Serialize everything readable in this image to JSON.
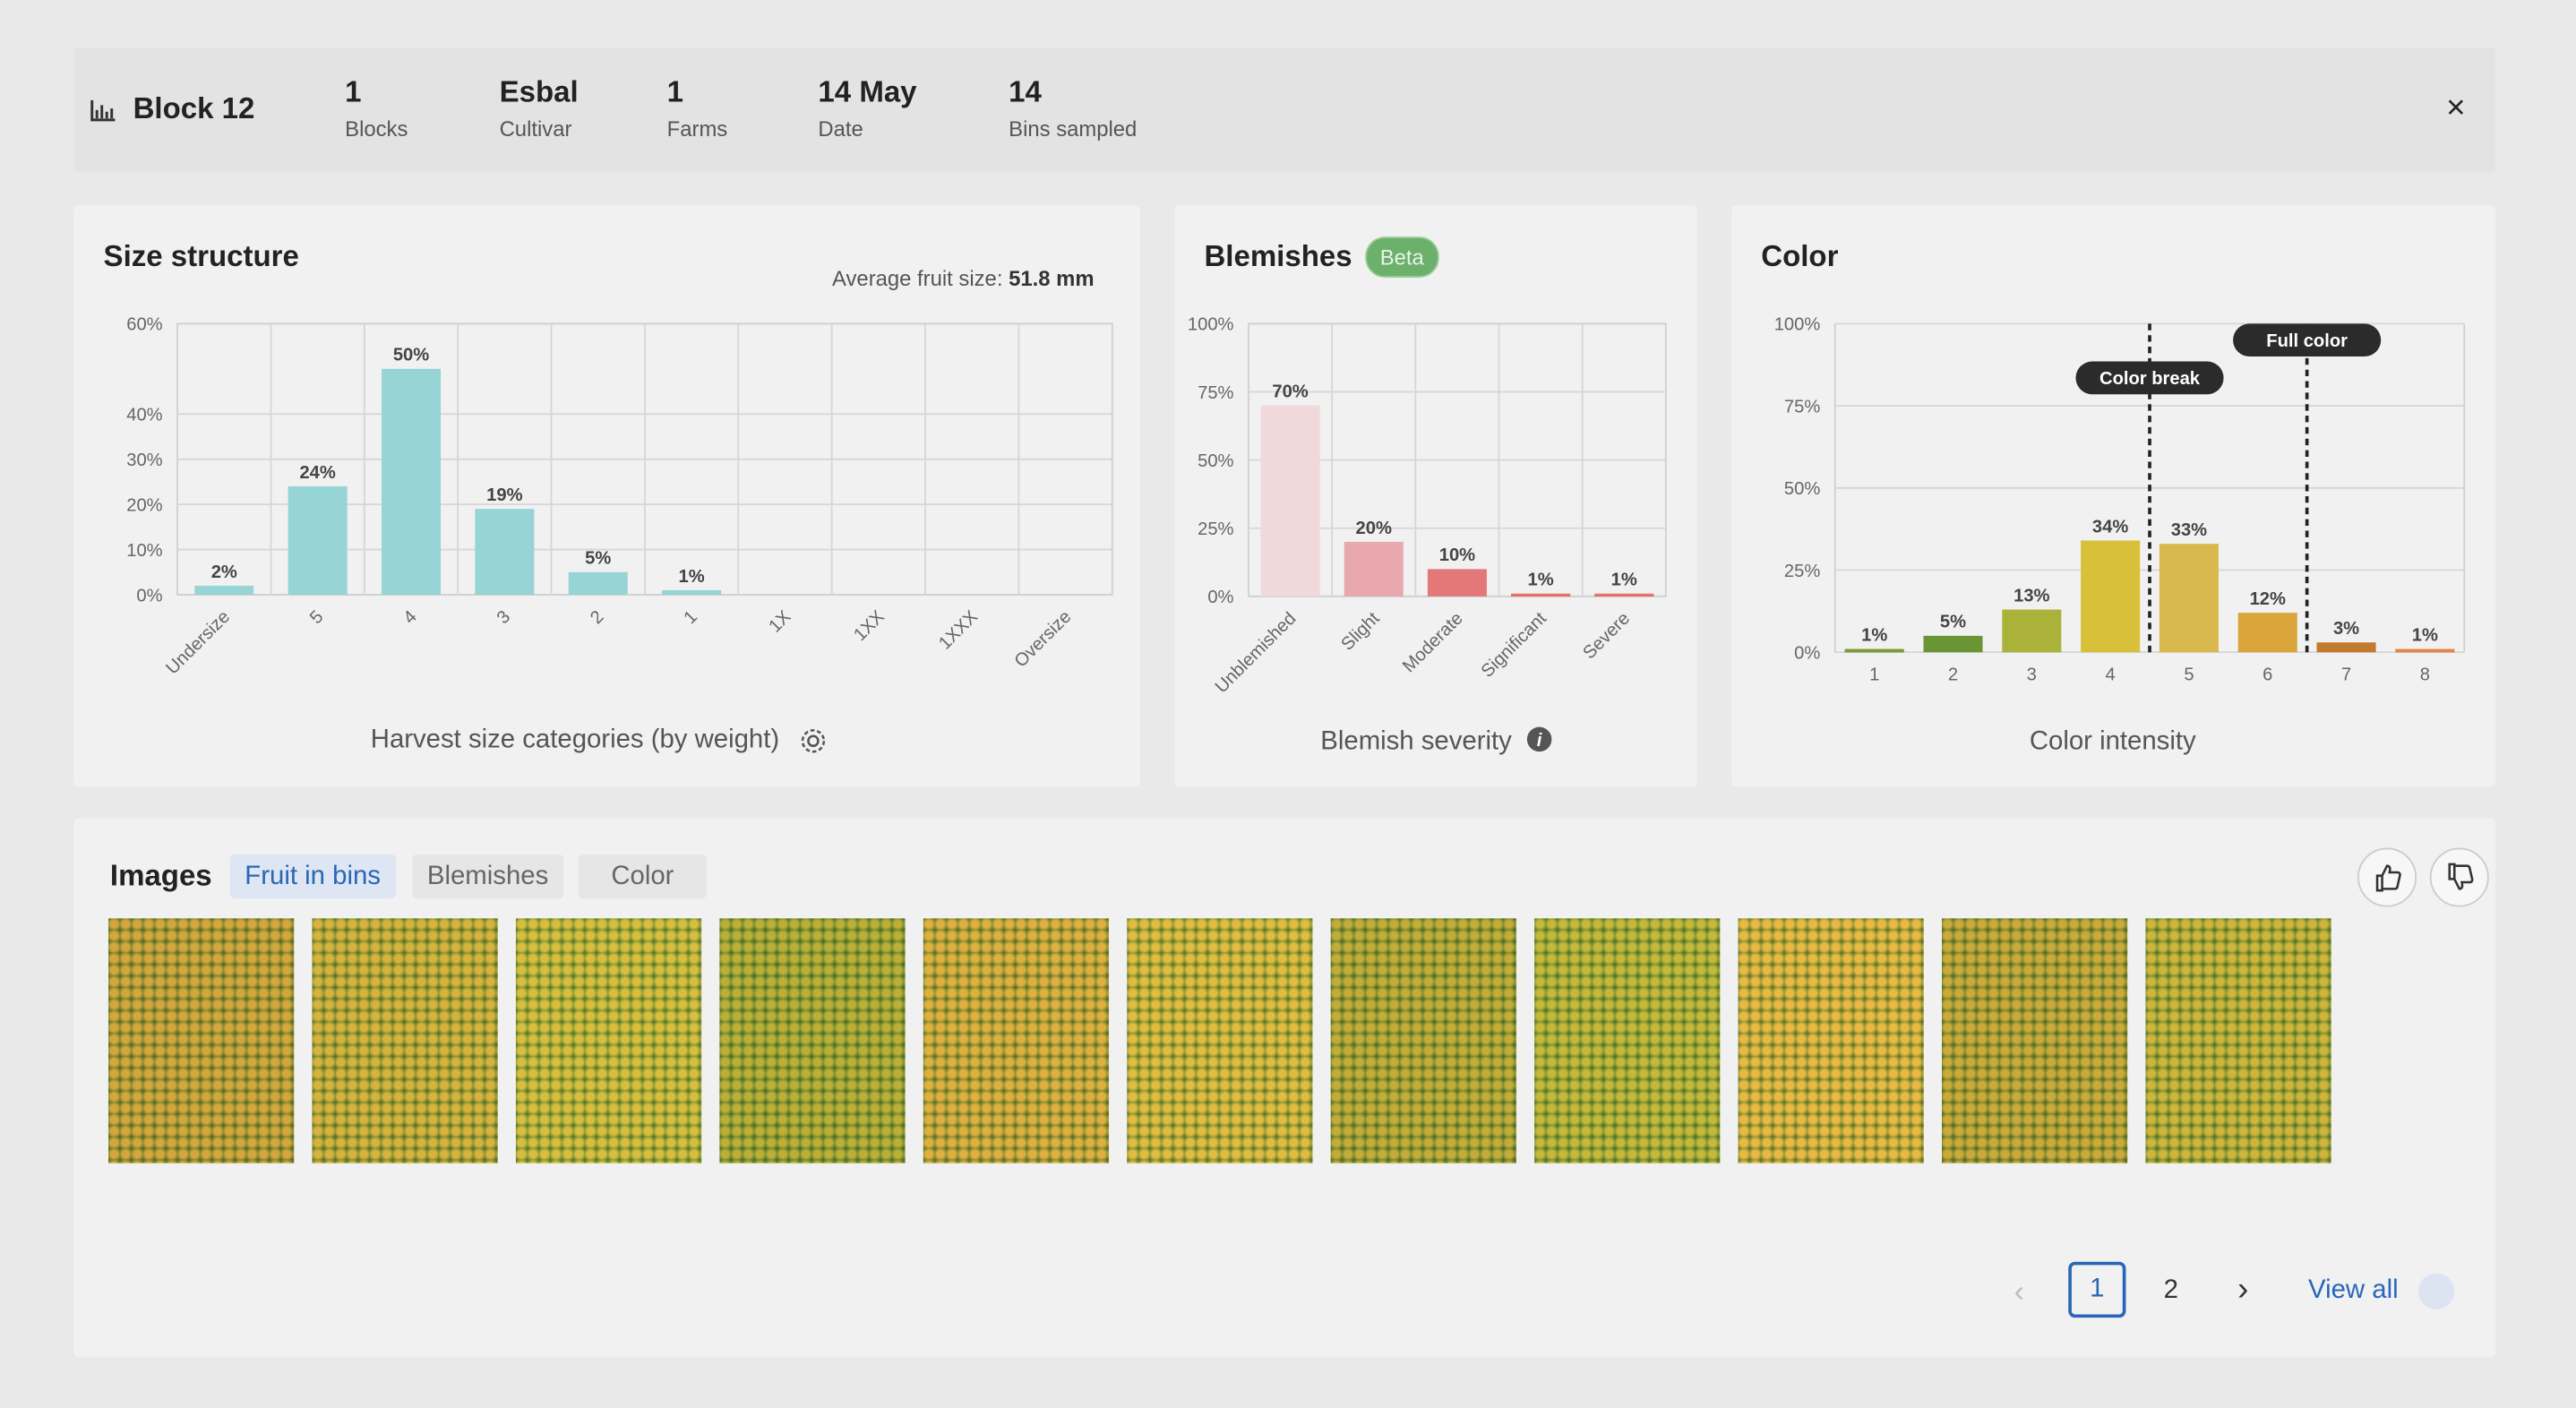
{
  "header": {
    "title": "Block 12",
    "stats": [
      {
        "value": "1",
        "label": "Blocks"
      },
      {
        "value": "Esbal",
        "label": "Cultivar"
      },
      {
        "value": "1",
        "label": "Farms"
      },
      {
        "value": "14 May",
        "label": "Date"
      },
      {
        "value": "14",
        "label": "Bins sampled"
      }
    ]
  },
  "chart_data": [
    {
      "type": "bar",
      "title": "Size structure",
      "average_label": "Average fruit size:",
      "average_value": "51.8 mm",
      "x_label": "Harvest size categories (by weight)",
      "categories": [
        "Undersize",
        "5",
        "4",
        "3",
        "2",
        "1",
        "1X",
        "1XX",
        "1XXX",
        "Oversize"
      ],
      "values": [
        2,
        24,
        50,
        19,
        5,
        1,
        null,
        null,
        null,
        null
      ],
      "value_labels": [
        "2%",
        "24%",
        "50%",
        "19%",
        "5%",
        "1%",
        null,
        null,
        null,
        null
      ],
      "color": "#97d4d5",
      "ylim": [
        0,
        60
      ],
      "yticks": [
        {
          "value": 0,
          "label": "0%"
        },
        {
          "value": 10,
          "label": "10%"
        },
        {
          "value": 20,
          "label": "20%"
        },
        {
          "value": 30,
          "label": "30%"
        },
        {
          "value": 40,
          "label": "40%"
        },
        {
          "value": 60,
          "label": "60%"
        }
      ],
      "grid": true
    },
    {
      "type": "bar",
      "title": "Blemishes",
      "badge": "Beta",
      "x_label": "Blemish severity",
      "categories": [
        "Unblemished",
        "Slight",
        "Moderate",
        "Significant",
        "Severe"
      ],
      "values": [
        70,
        20,
        10,
        1,
        1
      ],
      "value_labels": [
        "70%",
        "20%",
        "10%",
        "1%",
        "1%"
      ],
      "colors": [
        "#f0d8db",
        "#e8a8ad",
        "#e47878",
        "#e8705f",
        "#e8705f"
      ],
      "ylim": [
        0,
        100
      ],
      "yticks": [
        {
          "value": 0,
          "label": "0%"
        },
        {
          "value": 25,
          "label": "25%"
        },
        {
          "value": 50,
          "label": "50%"
        },
        {
          "value": 75,
          "label": "75%"
        },
        {
          "value": 100,
          "label": "100%"
        }
      ],
      "grid": true
    },
    {
      "type": "bar",
      "title": "Color",
      "x_label": "Color intensity",
      "categories": [
        "1",
        "2",
        "3",
        "4",
        "5",
        "6",
        "7",
        "8"
      ],
      "values": [
        1,
        5,
        13,
        34,
        33,
        12,
        3,
        1
      ],
      "value_labels": [
        "1%",
        "5%",
        "13%",
        "34%",
        "33%",
        "12%",
        "3%",
        "1%"
      ],
      "colors": [
        "#7f9a3c",
        "#6a9535",
        "#abb23a",
        "#d8c03a",
        "#d9b94e",
        "#d9a43a",
        "#c27a2f",
        "#e0884a"
      ],
      "ylim": [
        0,
        100
      ],
      "yticks": [
        {
          "value": 0,
          "label": "0%"
        },
        {
          "value": 25,
          "label": "25%"
        },
        {
          "value": 50,
          "label": "50%"
        },
        {
          "value": 75,
          "label": "75%"
        },
        {
          "value": 100,
          "label": "100%"
        }
      ],
      "grid": true,
      "annotations": [
        "Color break",
        "Full color"
      ]
    }
  ],
  "images": {
    "title": "Images",
    "tabs": [
      "Fruit in bins",
      "Blemishes",
      "Color"
    ],
    "count": 11
  },
  "pagination": {
    "pages": [
      1,
      2
    ],
    "view_all": "View all"
  }
}
